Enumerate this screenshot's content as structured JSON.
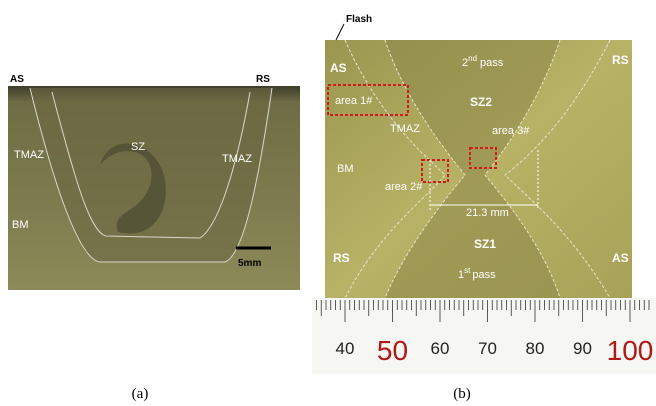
{
  "figure_a": {
    "labels": {
      "as": "AS",
      "rs": "RS",
      "tmaz_left": "TMAZ",
      "sz": "SZ",
      "tmaz_right": "TMAZ",
      "bm": "BM",
      "scale": "5mm"
    },
    "caption": "(a)"
  },
  "figure_b": {
    "labels": {
      "flash": "Flash",
      "as_top": "AS",
      "rs_top": "RS",
      "pass2": {
        "base": "2",
        "sup": "nd",
        "word": "pass"
      },
      "area1": "area 1#",
      "sz2": "SZ2",
      "tmaz": "TMAZ",
      "area3": "area 3#",
      "bm": "BM",
      "area2": "area 2#",
      "dimension": "21.3 mm",
      "sz1": "SZ1",
      "rs_bottom": "RS",
      "as_bottom": "AS",
      "pass1": {
        "base": "1",
        "sup": "st",
        "word": "pass"
      }
    },
    "ruler": [
      "40",
      "50",
      "60",
      "70",
      "80",
      "90",
      "100"
    ],
    "caption": "(b)"
  }
}
